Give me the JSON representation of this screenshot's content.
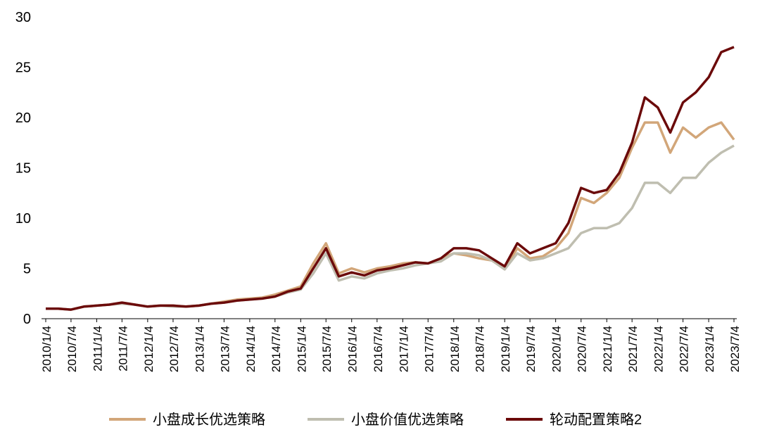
{
  "chart_data": {
    "type": "line",
    "x": [
      "2010/1/4",
      "2010/4/4",
      "2010/7/4",
      "2010/10/4",
      "2011/1/4",
      "2011/4/4",
      "2011/7/4",
      "2011/10/4",
      "2012/1/4",
      "2012/4/4",
      "2012/7/4",
      "2012/10/4",
      "2013/1/4",
      "2013/4/4",
      "2013/7/4",
      "2013/10/4",
      "2014/1/4",
      "2014/4/4",
      "2014/7/4",
      "2014/10/4",
      "2015/1/4",
      "2015/4/4",
      "2015/7/4",
      "2015/10/4",
      "2016/1/4",
      "2016/4/4",
      "2016/7/4",
      "2016/10/4",
      "2017/1/4",
      "2017/4/4",
      "2017/7/4",
      "2017/10/4",
      "2018/1/4",
      "2018/4/4",
      "2018/7/4",
      "2018/10/4",
      "2019/1/4",
      "2019/4/4",
      "2019/7/4",
      "2019/10/4",
      "2020/1/4",
      "2020/4/4",
      "2020/7/4",
      "2020/10/4",
      "2021/1/4",
      "2021/4/4",
      "2021/7/4",
      "2021/10/4",
      "2022/1/4",
      "2022/4/4",
      "2022/7/4",
      "2022/10/4",
      "2023/1/4",
      "2023/4/4",
      "2023/7/4"
    ],
    "series": [
      {
        "name": "小盘成长优选策略",
        "color": "#d2a679",
        "values": [
          1,
          1.0,
          0.9,
          1.2,
          1.3,
          1.4,
          1.6,
          1.4,
          1.2,
          1.3,
          1.3,
          1.2,
          1.3,
          1.5,
          1.7,
          1.9,
          2.0,
          2.1,
          2.4,
          2.8,
          3.2,
          5.5,
          7.5,
          4.5,
          5.0,
          4.6,
          5.0,
          5.2,
          5.5,
          5.6,
          5.5,
          6.0,
          6.5,
          6.3,
          6.0,
          5.8,
          5.0,
          7.0,
          6.0,
          6.2,
          7.0,
          8.5,
          12.0,
          11.5,
          12.5,
          14.0,
          17.0,
          19.5,
          19.5,
          16.5,
          19.0,
          18.0,
          19.0,
          19.5,
          17.8
        ]
      },
      {
        "name": "小盘价值优选策略",
        "color": "#bfbeb0",
        "values": [
          1,
          1.0,
          0.9,
          1.2,
          1.3,
          1.4,
          1.5,
          1.4,
          1.2,
          1.3,
          1.2,
          1.2,
          1.3,
          1.5,
          1.6,
          1.8,
          1.9,
          2.0,
          2.2,
          2.6,
          2.9,
          4.5,
          6.5,
          3.8,
          4.2,
          4.0,
          4.5,
          4.8,
          5.0,
          5.3,
          5.5,
          5.7,
          6.5,
          6.5,
          6.3,
          5.8,
          4.9,
          6.5,
          5.8,
          6.0,
          6.5,
          7.0,
          8.5,
          9.0,
          9.0,
          9.5,
          11.0,
          13.5,
          13.5,
          12.5,
          14.0,
          14.0,
          15.5,
          16.5,
          17.2
        ]
      },
      {
        "name": "轮动配置策略2",
        "color": "#6b0a0a",
        "values": [
          1,
          1.0,
          0.9,
          1.2,
          1.3,
          1.4,
          1.6,
          1.4,
          1.2,
          1.3,
          1.3,
          1.2,
          1.3,
          1.5,
          1.6,
          1.8,
          1.9,
          2.0,
          2.2,
          2.7,
          3.0,
          5.0,
          7.0,
          4.2,
          4.6,
          4.3,
          4.8,
          5.0,
          5.3,
          5.6,
          5.5,
          6.0,
          7.0,
          7.0,
          6.8,
          6.0,
          5.2,
          7.5,
          6.5,
          7.0,
          7.5,
          9.5,
          13.0,
          12.5,
          12.8,
          14.5,
          17.5,
          22.0,
          21.0,
          18.5,
          21.5,
          22.5,
          24.0,
          26.5,
          27.0
        ]
      }
    ],
    "xticks": [
      "2010/1/4",
      "2010/7/4",
      "2011/1/4",
      "2011/7/4",
      "2012/1/4",
      "2012/7/4",
      "2013/1/4",
      "2013/7/4",
      "2014/1/4",
      "2014/7/4",
      "2015/1/4",
      "2015/7/4",
      "2016/1/4",
      "2016/7/4",
      "2017/1/4",
      "2017/7/4",
      "2018/1/4",
      "2018/7/4",
      "2019/1/4",
      "2019/7/4",
      "2020/1/4",
      "2020/7/4",
      "2021/1/4",
      "2021/7/4",
      "2022/1/4",
      "2022/7/4",
      "2023/1/4",
      "2023/7/4"
    ],
    "ylim": [
      0,
      30
    ],
    "yticks": [
      0,
      5,
      10,
      15,
      20,
      25,
      30
    ],
    "legend": "bottom"
  }
}
